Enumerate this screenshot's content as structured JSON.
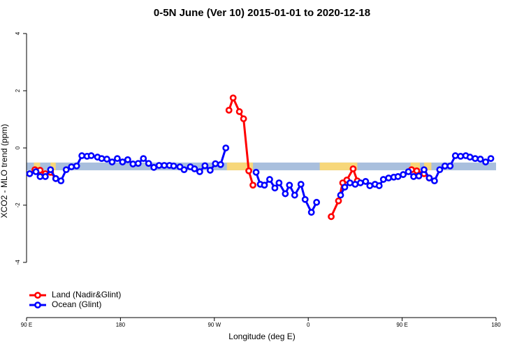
{
  "chart_data": {
    "type": "line",
    "title": "0-5N June (Ver 10)   2015-01-01 to 2020-12-18",
    "x_label": "Longitude (deg E)",
    "y_label": "XCO2 - MLO trend (ppm)",
    "xlim": [
      90,
      540
    ],
    "ylim": [
      -5.93,
      4.44
    ],
    "xticks": [
      {
        "value": 90,
        "label": "90 E"
      },
      180,
      {
        "value": 270,
        "label": "90 W"
      },
      {
        "value": 360,
        "label": "0"
      },
      {
        "value": 450,
        "label": "90 E"
      },
      {
        "value": 540,
        "label": "180"
      }
    ],
    "yticks": [
      -4,
      -2,
      0,
      2,
      4
    ],
    "legend": "bottom-left",
    "surface_band": {
      "ylim": [
        -0.78,
        -0.51
      ],
      "ocean_color": "#a9bfdd",
      "land_color": "#f7d77a",
      "land_ranges": [
        [
          97,
          103
        ],
        [
          113,
          118
        ],
        [
          282,
          307
        ],
        [
          371,
          407
        ],
        [
          458,
          467
        ],
        [
          471,
          478
        ]
      ]
    },
    "series": [
      {
        "name": "Land (Nadir&Glint)",
        "color": "#ff0000",
        "x": [
          98,
          103,
          108,
          113,
          118,
          null,
          284,
          288,
          294,
          298,
          303,
          307,
          null,
          382,
          389,
          393,
          397,
          403,
          407,
          null,
          459,
          464,
          471,
          476
        ],
        "values": [
          -0.76,
          -0.78,
          -0.9,
          -0.85,
          -1.07,
          null,
          1.32,
          1.75,
          1.27,
          1.02,
          -0.8,
          -1.3,
          null,
          -2.4,
          -1.85,
          -1.22,
          -1.12,
          -0.73,
          -1.15,
          null,
          -0.76,
          -0.8,
          -0.9,
          -1.05
        ]
      },
      {
        "name": "Ocean (Glint)",
        "color": "#0000ff",
        "x": [
          93,
          99,
          103,
          108,
          113,
          118,
          123,
          128,
          133,
          138,
          143,
          148,
          152,
          158,
          162,
          167,
          172,
          177,
          182,
          187,
          192,
          197,
          202,
          207,
          212,
          217,
          222,
          227,
          231,
          237,
          241,
          247,
          251,
          256,
          261,
          266,
          271,
          276,
          281,
          null,
          310,
          314,
          318,
          323,
          328,
          332,
          338,
          342,
          347,
          353,
          357,
          363,
          368,
          null,
          391,
          395,
          400,
          405,
          410,
          415,
          419,
          424,
          428,
          432,
          437,
          442,
          446,
          451,
          456,
          461,
          466,
          471,
          476,
          481,
          486,
          491,
          496,
          501,
          506,
          511,
          515,
          520,
          525,
          530,
          535
        ],
        "values": [
          -0.9,
          -0.83,
          -1.0,
          -1.0,
          -0.76,
          -1.07,
          -1.15,
          -0.76,
          -0.66,
          -0.63,
          -0.27,
          -0.29,
          -0.27,
          -0.32,
          -0.37,
          -0.39,
          -0.49,
          -0.37,
          -0.49,
          -0.41,
          -0.56,
          -0.54,
          -0.37,
          -0.54,
          -0.68,
          -0.61,
          -0.61,
          -0.61,
          -0.63,
          -0.66,
          -0.76,
          -0.66,
          -0.73,
          -0.83,
          -0.62,
          -0.78,
          -0.55,
          -0.58,
          0.0,
          null,
          -0.85,
          -1.27,
          -1.3,
          -1.1,
          -1.4,
          -1.22,
          -1.6,
          -1.3,
          -1.65,
          -1.27,
          -1.8,
          -2.25,
          -1.9,
          null,
          -1.65,
          -1.37,
          -1.22,
          -1.27,
          -1.22,
          -1.17,
          -1.32,
          -1.27,
          -1.32,
          -1.1,
          -1.05,
          -1.02,
          -1.0,
          -0.93,
          -0.83,
          -1.0,
          -0.98,
          -0.76,
          -1.05,
          -1.15,
          -0.76,
          -0.63,
          -0.63,
          -0.27,
          -0.29,
          -0.27,
          -0.32,
          -0.37,
          -0.39,
          -0.49,
          -0.37
        ]
      }
    ]
  }
}
